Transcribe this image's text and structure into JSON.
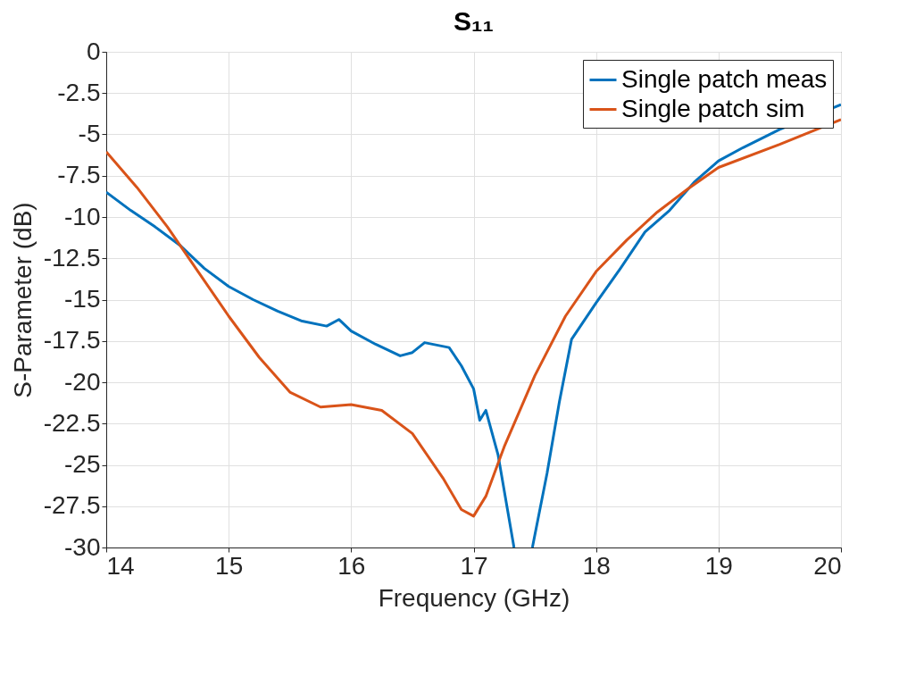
{
  "chart_data": {
    "type": "line",
    "title": "S₁₁",
    "xlabel": "Frequency (GHz)",
    "ylabel": "S-Parameter (dB)",
    "xlim": [
      14,
      20
    ],
    "ylim": [
      -30,
      0
    ],
    "xticks": [
      14,
      15,
      16,
      17,
      18,
      19,
      20
    ],
    "yticks": [
      0,
      -2.5,
      -5,
      -7.5,
      -10,
      -12.5,
      -15,
      -17.5,
      -20,
      -22.5,
      -25,
      -27.5,
      -30
    ],
    "grid": true,
    "legend": "top right",
    "marker": "none",
    "line_style": "solid",
    "series": [
      {
        "name": "Single patch meas",
        "color": "#0072bd",
        "x": [
          14,
          14.2,
          14.4,
          14.6,
          14.8,
          15.0,
          15.2,
          15.4,
          15.6,
          15.8,
          15.9,
          16.0,
          16.2,
          16.4,
          16.5,
          16.6,
          16.8,
          16.9,
          17.0,
          17.05,
          17.1,
          17.2,
          17.33,
          17.4,
          17.48,
          17.6,
          17.7,
          17.8,
          18.0,
          18.2,
          18.4,
          18.6,
          18.8,
          19.0,
          19.2,
          19.5,
          20.0
        ],
        "values": [
          -8.5,
          -9.6,
          -10.6,
          -11.7,
          -13.1,
          -14.2,
          -15.0,
          -15.7,
          -16.3,
          -16.6,
          -16.2,
          -16.9,
          -17.7,
          -18.4,
          -18.2,
          -17.6,
          -17.9,
          -19.0,
          -20.4,
          -22.3,
          -21.7,
          -24.4,
          -30,
          null,
          -30,
          -25.5,
          -21.2,
          -17.4,
          -15.2,
          -13.1,
          -10.9,
          -9.6,
          -7.9,
          -6.6,
          -5.8,
          -4.7,
          -3.2
        ]
      },
      {
        "name": "Single patch sim",
        "color": "#d95319",
        "x": [
          14,
          14.25,
          14.5,
          14.75,
          15.0,
          15.25,
          15.5,
          15.75,
          16.0,
          16.25,
          16.5,
          16.75,
          16.9,
          17.0,
          17.1,
          17.25,
          17.5,
          17.75,
          18.0,
          18.25,
          18.5,
          18.75,
          19.0,
          19.5,
          20.0
        ],
        "values": [
          -6.05,
          -8.2,
          -10.6,
          -13.3,
          -16.0,
          -18.5,
          -20.6,
          -21.5,
          -21.35,
          -21.7,
          -23.1,
          -25.8,
          -27.7,
          -28.1,
          -26.9,
          -23.9,
          -19.6,
          -16.0,
          -13.3,
          -11.4,
          -9.7,
          -8.3,
          -7.0,
          -5.6,
          -4.1
        ]
      }
    ]
  }
}
